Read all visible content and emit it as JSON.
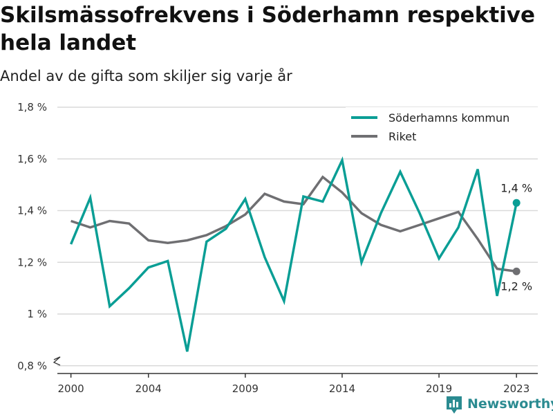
{
  "chart_data": {
    "type": "line",
    "title": "Skilsmässofrekvens i Söderhamn respektive hela landet",
    "subtitle": "Andel av de gifta som skiljer sig varje år",
    "x": [
      2000,
      2001,
      2002,
      2003,
      2004,
      2005,
      2006,
      2007,
      2008,
      2009,
      2010,
      2011,
      2012,
      2013,
      2014,
      2015,
      2016,
      2017,
      2018,
      2019,
      2020,
      2021,
      2022,
      2023
    ],
    "xlim": [
      1999.3,
      2024.1
    ],
    "x_ticks": [
      2000,
      2004,
      2009,
      2014,
      2019,
      2023
    ],
    "x_tick_labels": [
      "2000",
      "2004",
      "2009",
      "2014",
      "2019",
      "2023"
    ],
    "ylim": [
      0.77,
      1.8
    ],
    "y_ticks": [
      0.8,
      1.0,
      1.2,
      1.4,
      1.6,
      1.8
    ],
    "y_tick_labels": [
      "0,8 %",
      "1 %",
      "1,2 %",
      "1,4 %",
      "1,6 %",
      "1,8 %"
    ],
    "axis_break": true,
    "grid": "horizontal",
    "legend_position": "top-right",
    "series": [
      {
        "name": "Söderhamns kommun",
        "color": "#0a9e95",
        "values": [
          1.27,
          1.45,
          1.03,
          1.1,
          1.18,
          1.205,
          0.855,
          1.28,
          1.33,
          1.445,
          1.22,
          1.05,
          1.455,
          1.435,
          1.595,
          1.2,
          1.39,
          1.55,
          1.39,
          1.215,
          1.335,
          1.56,
          1.07,
          1.43
        ],
        "end_label": "1,4 %"
      },
      {
        "name": "Riket",
        "color": "#6f6f72",
        "values": [
          1.36,
          1.335,
          1.36,
          1.35,
          1.285,
          1.275,
          1.285,
          1.305,
          1.34,
          1.385,
          1.465,
          1.435,
          1.425,
          1.53,
          1.47,
          1.39,
          1.345,
          1.32,
          1.345,
          1.37,
          1.395,
          1.29,
          1.175,
          1.165
        ],
        "end_label": "1,2 %"
      }
    ]
  },
  "brand": {
    "name": "Newsworthy",
    "icon": "bar-chart-logo-icon",
    "color": "#2b8b91"
  }
}
